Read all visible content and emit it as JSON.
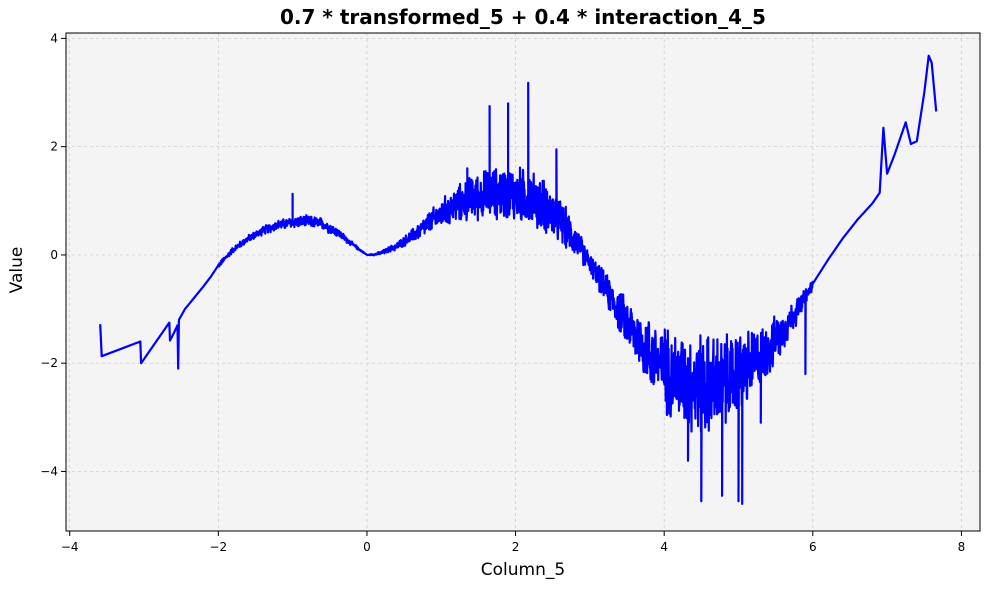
{
  "chart_data": {
    "type": "line",
    "title": "0.7 * transformed_5 + 0.4 * interaction_4_5",
    "xlabel": "Column_5",
    "ylabel": "Value",
    "xlim": [
      -4.05,
      8.25
    ],
    "ylim": [
      -5.1,
      4.1
    ],
    "x_ticks": [
      -4,
      -2,
      0,
      2,
      4,
      6,
      8
    ],
    "x_tick_labels": [
      "−4",
      "−2",
      "0",
      "2",
      "4",
      "6",
      "8"
    ],
    "y_ticks": [
      -4,
      -2,
      0,
      2,
      4
    ],
    "y_tick_labels": [
      "−4",
      "−2",
      "0",
      "2",
      "4"
    ],
    "grid": true,
    "background_color": "#f4f4f4",
    "series": [
      {
        "color": "#0000ff",
        "x": [
          -3.59,
          -3.57,
          -3.05,
          -3.04,
          -2.66,
          -2.65,
          -2.6,
          -2.55,
          -2.54,
          -2.53,
          -2.45,
          -2.4,
          -2.3,
          -2.2,
          -2.1,
          -2.0,
          -1.9,
          -1.8,
          -1.6,
          -1.4,
          -1.2,
          -1.0,
          -0.8,
          -0.6,
          -0.4,
          -0.2,
          -0.1,
          0.0,
          0.1,
          0.2,
          0.4,
          0.6,
          0.8,
          1.0,
          1.2,
          1.4,
          1.6,
          1.8,
          2.0,
          2.2,
          2.4,
          2.6,
          2.8,
          3.0,
          3.2,
          3.4,
          3.6,
          3.8,
          4.0,
          4.2,
          4.4,
          4.6,
          4.8,
          5.0,
          5.2,
          5.4,
          5.6,
          5.8,
          6.0,
          6.2,
          6.4,
          6.6,
          6.8,
          6.9,
          6.95,
          7.0,
          7.1,
          7.25,
          7.32,
          7.4,
          7.5,
          7.56,
          7.6,
          7.66
        ],
        "y": [
          -1.28,
          -1.87,
          -1.6,
          -2.0,
          -1.25,
          -1.58,
          -1.45,
          -1.3,
          -2.1,
          -1.2,
          -1.0,
          -0.92,
          -0.75,
          -0.58,
          -0.4,
          -0.2,
          -0.05,
          0.1,
          0.3,
          0.45,
          0.55,
          0.6,
          0.62,
          0.58,
          0.42,
          0.2,
          0.1,
          0.0,
          0.01,
          0.04,
          0.16,
          0.34,
          0.55,
          0.76,
          0.92,
          1.05,
          1.12,
          1.15,
          1.12,
          1.05,
          0.9,
          0.62,
          0.28,
          -0.15,
          -0.6,
          -1.05,
          -1.45,
          -1.8,
          -2.1,
          -2.28,
          -2.38,
          -2.4,
          -2.35,
          -2.2,
          -2.0,
          -1.75,
          -1.4,
          -1.0,
          -0.55,
          -0.1,
          0.3,
          0.65,
          0.95,
          1.15,
          2.35,
          1.5,
          1.85,
          2.45,
          2.05,
          2.1,
          3.0,
          3.68,
          3.55,
          2.65
        ]
      }
    ],
    "noise_band": {
      "x": [
        -2.0,
        -1.5,
        -1.0,
        -0.5,
        0.0,
        0.5,
        1.0,
        1.5,
        2.0,
        2.5,
        3.0,
        3.5,
        4.0,
        4.5,
        5.0,
        5.5,
        6.0
      ],
      "amp": [
        0.05,
        0.08,
        0.12,
        0.12,
        0.0,
        0.1,
        0.3,
        0.5,
        0.6,
        0.55,
        0.2,
        0.5,
        0.9,
        1.1,
        0.9,
        0.5,
        0.1
      ]
    },
    "spikes": [
      {
        "x": -1.0,
        "y": 1.13
      },
      {
        "x": 1.65,
        "y": 2.75
      },
      {
        "x": 1.9,
        "y": 2.8
      },
      {
        "x": 2.17,
        "y": 3.18
      },
      {
        "x": 1.35,
        "y": 1.6
      },
      {
        "x": 2.55,
        "y": 1.95
      },
      {
        "x": 3.4,
        "y": -1.4
      },
      {
        "x": 4.32,
        "y": -3.8
      },
      {
        "x": 4.5,
        "y": -4.55
      },
      {
        "x": 4.78,
        "y": -4.45
      },
      {
        "x": 5.0,
        "y": -4.55
      },
      {
        "x": 5.05,
        "y": -4.6
      },
      {
        "x": 5.3,
        "y": -3.1
      },
      {
        "x": 5.9,
        "y": -2.2
      },
      {
        "x": 6.0,
        "y": -1.3
      },
      {
        "x": 6.6,
        "y": 0.98
      }
    ]
  }
}
